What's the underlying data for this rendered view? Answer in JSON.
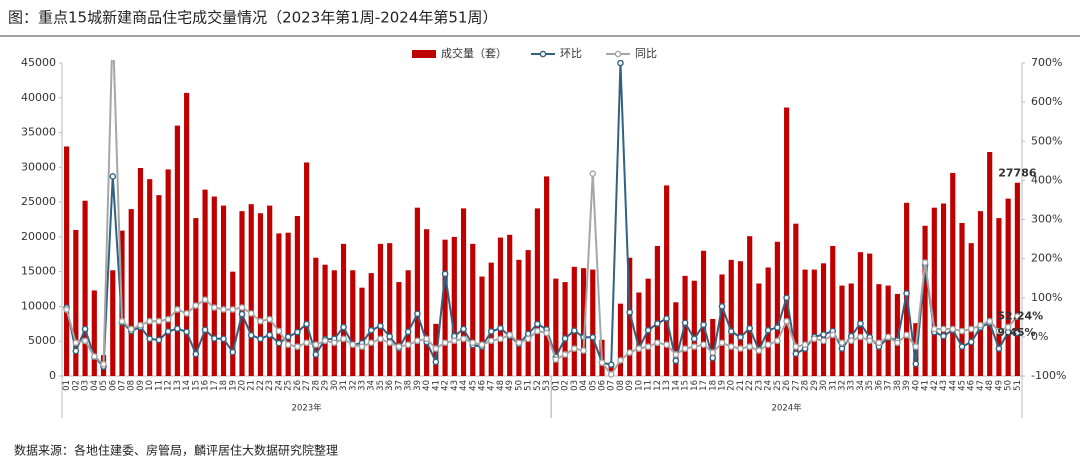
{
  "chart_data": {
    "type": "bar",
    "title": "图：重点15城新建商品住宅成交量情况（2023年第1周-2024年第51周）",
    "source": "数据来源：各地住建委、房管局，麟评居住大数据研究院整理",
    "category_groups": [
      {
        "label": "2023年",
        "categories": [
          "01",
          "02",
          "03",
          "04",
          "05",
          "06",
          "07",
          "08",
          "09",
          "10",
          "11",
          "12",
          "13",
          "14",
          "15",
          "16",
          "17",
          "18",
          "19",
          "20",
          "21",
          "22",
          "23",
          "24",
          "25",
          "26",
          "27",
          "28",
          "29",
          "30",
          "31",
          "32",
          "33",
          "34",
          "35",
          "36",
          "37",
          "38",
          "39",
          "40",
          "41",
          "42",
          "43",
          "44",
          "45",
          "46",
          "47",
          "48",
          "49",
          "50",
          "51",
          "52",
          "53"
        ]
      },
      {
        "label": "2024年",
        "categories": [
          "01",
          "02",
          "03",
          "04",
          "05",
          "06",
          "07",
          "08",
          "09",
          "10",
          "11",
          "12",
          "13",
          "14",
          "15",
          "16",
          "17",
          "18",
          "19",
          "20",
          "21",
          "22",
          "23",
          "24",
          "25",
          "26",
          "27",
          "28",
          "29",
          "30",
          "31",
          "32",
          "33",
          "34",
          "35",
          "36",
          "37",
          "38",
          "39",
          "40",
          "41",
          "42",
          "43",
          "44",
          "45",
          "46",
          "47",
          "48",
          "49",
          "50",
          "51"
        ]
      }
    ],
    "series": [
      {
        "name": "成交量（套）",
        "type": "bar",
        "color": "#c00000",
        "values": [
          33000,
          21000,
          25200,
          12300,
          3000,
          15200,
          20900,
          24000,
          29900,
          28300,
          26000,
          29700,
          36000,
          40700,
          22700,
          26800,
          25800,
          24500,
          15000,
          23700,
          24700,
          23400,
          24500,
          20500,
          20600,
          23000,
          30700,
          17000,
          16000,
          15200,
          19000,
          15200,
          12700,
          14800,
          19000,
          19100,
          13500,
          15200,
          24200,
          21100,
          7500,
          19600,
          20000,
          24100,
          19000,
          14300,
          16300,
          19900,
          20300,
          16700,
          18100,
          24100,
          28700,
          14000,
          13500,
          15700,
          15500,
          15300,
          5200,
          1500,
          10400,
          17000,
          12000,
          14000,
          18700,
          27400,
          10600,
          14400,
          13700,
          18000,
          8200,
          14600,
          16700,
          16500,
          20100,
          13300,
          15600,
          19300,
          38600,
          21900,
          15300,
          15300,
          16200,
          18700,
          13000,
          13300,
          17800,
          17600,
          13200,
          13000,
          11800,
          24900,
          7600,
          21600,
          24200,
          24800,
          29200,
          22000,
          19100,
          23700,
          32200,
          22700,
          25500,
          27786
        ]
      },
      {
        "name": "环比",
        "type": "line",
        "axis": "y2",
        "color": "#31627f",
        "values": [
          75,
          -36,
          20,
          -51,
          -76,
          410,
          37,
          15,
          25,
          -5,
          -8,
          14,
          21,
          13,
          -44,
          18,
          -4,
          -5,
          -39,
          58,
          4,
          -5,
          5,
          -16,
          0,
          12,
          33,
          -45,
          -6,
          -5,
          25,
          -20,
          -16,
          17,
          28,
          1,
          -29,
          13,
          59,
          -13,
          -64,
          161,
          2,
          20,
          -21,
          -25,
          14,
          22,
          2,
          -18,
          8,
          33,
          19,
          -51,
          -4,
          16,
          -1,
          -1,
          -66,
          -71,
          700,
          63,
          -29,
          17,
          34,
          47,
          -61,
          36,
          -5,
          31,
          -54,
          78,
          14,
          -1,
          22,
          -34,
          17,
          24,
          100,
          -43,
          -30,
          0,
          6,
          15,
          -30,
          2,
          34,
          -1,
          -25,
          -2,
          -9,
          111,
          -69,
          184,
          12,
          2,
          18,
          -25,
          -13,
          24,
          36,
          -30,
          12,
          9.45
        ],
        "value_labels": [
          null,
          null,
          null,
          null,
          null,
          null,
          null,
          null,
          null,
          null,
          null,
          null,
          null,
          null,
          null,
          null,
          null,
          null,
          null,
          null,
          null,
          null,
          null,
          null,
          null,
          null,
          null,
          null,
          null,
          null,
          null,
          null,
          null,
          null,
          null,
          null,
          null,
          null,
          null,
          null,
          null,
          null,
          null,
          null,
          null,
          null,
          null,
          null,
          null,
          null,
          null,
          null,
          null,
          null,
          null,
          null,
          null,
          null,
          null,
          null,
          null,
          null,
          null,
          null,
          null,
          null,
          null,
          null,
          null,
          null,
          null,
          null,
          null,
          null,
          null,
          null,
          null,
          null,
          null,
          null,
          null,
          null,
          null,
          null,
          null,
          null,
          null,
          null,
          null,
          null,
          null,
          null,
          null,
          null,
          null,
          null,
          null,
          null,
          null,
          null,
          null,
          null,
          null,
          "9.45%"
        ]
      },
      {
        "name": "同比",
        "type": "line",
        "axis": "y2",
        "color": "#a6a6a6",
        "values": [
          70,
          -15,
          -10,
          -50,
          -70,
          800,
          40,
          20,
          30,
          40,
          40,
          45,
          70,
          60,
          80,
          95,
          75,
          70,
          70,
          75,
          60,
          40,
          45,
          15,
          -20,
          -25,
          -15,
          -20,
          -10,
          -15,
          -5,
          -20,
          -25,
          -15,
          -5,
          -15,
          -25,
          -20,
          -10,
          -5,
          -30,
          -15,
          -10,
          -5,
          -15,
          -20,
          -10,
          -5,
          5,
          -15,
          -5,
          15,
          10,
          -58,
          -45,
          -30,
          -35,
          417,
          -66,
          -96,
          -60,
          -40,
          -30,
          -25,
          -15,
          -20,
          -45,
          -30,
          -25,
          -20,
          -40,
          -15,
          -25,
          -30,
          -25,
          -35,
          -20,
          -10,
          40,
          -25,
          -20,
          -5,
          -10,
          5,
          -15,
          -10,
          0,
          -10,
          -15,
          0,
          -15,
          5,
          -25,
          190,
          20,
          20,
          20,
          15,
          20,
          30,
          40,
          15,
          25,
          52.24
        ],
        "value_labels": [
          null,
          null,
          null,
          null,
          null,
          null,
          null,
          null,
          null,
          null,
          null,
          null,
          null,
          null,
          null,
          null,
          null,
          null,
          null,
          null,
          null,
          null,
          null,
          null,
          null,
          null,
          null,
          null,
          null,
          null,
          null,
          null,
          null,
          null,
          null,
          null,
          null,
          null,
          null,
          null,
          null,
          null,
          null,
          null,
          null,
          null,
          null,
          null,
          null,
          null,
          null,
          null,
          null,
          null,
          null,
          null,
          null,
          null,
          null,
          null,
          null,
          null,
          null,
          null,
          null,
          null,
          null,
          null,
          null,
          null,
          null,
          null,
          null,
          null,
          null,
          null,
          null,
          null,
          null,
          null,
          null,
          null,
          null,
          null,
          null,
          null,
          null,
          null,
          null,
          null,
          null,
          null,
          null,
          null,
          null,
          null,
          null,
          null,
          null,
          null,
          null,
          null,
          null,
          "52.24%"
        ]
      }
    ],
    "ylim": [
      0,
      45000
    ],
    "yticks": [
      0,
      5000,
      10000,
      15000,
      20000,
      25000,
      30000,
      35000,
      40000,
      45000
    ],
    "y2lim": [
      -100,
      700
    ],
    "y2ticks": [
      {
        "value": -100,
        "label": "-100%"
      },
      {
        "value": 0,
        "label": "0%"
      },
      {
        "value": 100,
        "label": "100%"
      },
      {
        "value": 200,
        "label": "200%"
      },
      {
        "value": 300,
        "label": "300%"
      },
      {
        "value": 400,
        "label": "400%"
      },
      {
        "value": 500,
        "label": "500%"
      },
      {
        "value": 600,
        "label": "600%"
      },
      {
        "value": 700,
        "label": "700%"
      }
    ],
    "grid": false,
    "legend": "top"
  }
}
